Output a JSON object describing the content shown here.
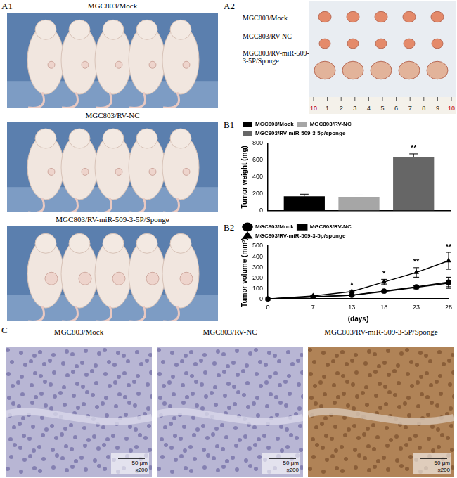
{
  "figure": {
    "a1": {
      "label": "A1",
      "panels": [
        "MGC803/Mock",
        "MGC803/RV-NC",
        "MGC803/RV-miR-509-3-5P/Sponge"
      ]
    },
    "a2": {
      "label": "A2",
      "rows": [
        "MGC803/Mock",
        "MGC803/RV-NC",
        "MGC803/RV-miR-509-3-5P/Sponge"
      ],
      "ruler": [
        "10",
        "1",
        "2",
        "3",
        "4",
        "5",
        "6",
        "7",
        "8",
        "9",
        "10"
      ]
    },
    "c": {
      "label": "C",
      "panels": [
        "MGC803/Mock",
        "MGC803/RV-NC",
        "MGC803/RV-miR-509-3-5P/Sponge"
      ],
      "scale_bar": "50 μm",
      "magnification": "x200"
    }
  },
  "chart_data": [
    {
      "type": "bar",
      "panel_label": "B1",
      "y_label": "Tumor weight (mg)",
      "categories": [
        null
      ],
      "series": [
        {
          "name": "MGC803/Mock",
          "color": "#000000",
          "values": [
            170
          ],
          "errors": [
            25
          ]
        },
        {
          "name": "MGC803/RV-NC",
          "color": "#a6a6a6",
          "values": [
            165
          ],
          "errors": [
            20
          ]
        },
        {
          "name": "MGC803/RV-miR-509-3-5p/sponge",
          "color": "#666666",
          "values": [
            635
          ],
          "errors": [
            40
          ],
          "point_labels": [
            "**"
          ]
        }
      ],
      "ylim": [
        0,
        800
      ],
      "yticks": [
        0,
        200,
        400,
        600,
        800
      ],
      "grid": false,
      "legend": "upper left",
      "tick_labels": "y"
    },
    {
      "type": "line",
      "panel_label": "B2",
      "x_label": "(days)",
      "y_label": "Tumor volume (mm³)",
      "x": [
        0,
        7,
        13,
        18,
        23,
        28
      ],
      "series": [
        {
          "name": "MGC803/Mock",
          "color": "#000000",
          "marker": "circle",
          "values": [
            0,
            20,
            35,
            75,
            115,
            160
          ],
          "errors": [
            0,
            3,
            5,
            10,
            15,
            45
          ]
        },
        {
          "name": "MGC803/RV-NC",
          "color": "#000000",
          "marker": "square",
          "values": [
            0,
            20,
            35,
            70,
            110,
            150
          ],
          "errors": [
            0,
            3,
            5,
            10,
            15,
            50
          ]
        },
        {
          "name": "MGC803/RV-miR-509-3-5p/sponge",
          "color": "#000000",
          "marker": "triangle",
          "values": [
            0,
            28,
            70,
            160,
            250,
            360
          ],
          "errors": [
            0,
            5,
            10,
            25,
            45,
            80
          ],
          "point_labels": [
            null,
            null,
            "*",
            "*",
            "**",
            "**"
          ]
        }
      ],
      "xlim": [
        0,
        28
      ],
      "xticks": [
        0,
        7,
        13,
        18,
        23,
        28
      ],
      "ylim": [
        0,
        500
      ],
      "yticks": [
        0,
        100,
        200,
        300,
        400,
        500
      ],
      "grid": false,
      "legend": "upper left"
    }
  ]
}
